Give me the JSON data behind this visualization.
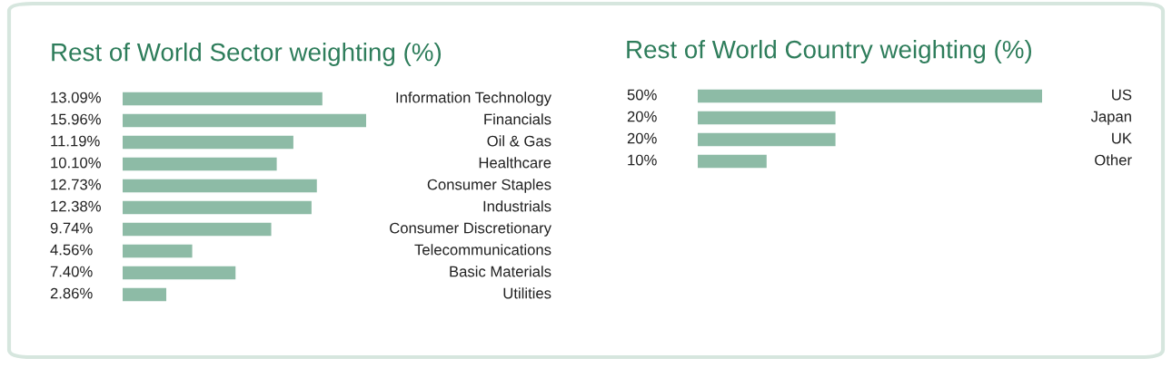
{
  "chart_data": [
    {
      "type": "bar",
      "orientation": "horizontal",
      "title": "Rest of World Sector weighting (%)",
      "categories": [
        "Information Technology",
        "Financials",
        "Oil & Gas",
        "Healthcare",
        "Consumer Staples",
        "Industrials",
        "Consumer Discretionary",
        "Telecommunications",
        "Basic Materials",
        "Utilities"
      ],
      "values": [
        13.09,
        15.96,
        11.19,
        10.1,
        12.73,
        12.38,
        9.74,
        4.56,
        7.4,
        2.86
      ],
      "value_labels": [
        "13.09%",
        "15.96%",
        "11.19%",
        "10.10%",
        "12.73%",
        "12.38%",
        "9.74%",
        "4.56%",
        "7.40%",
        "2.86%"
      ],
      "color": "#8dbba6"
    },
    {
      "type": "bar",
      "orientation": "horizontal",
      "title": "Rest of World Country weighting (%)",
      "categories": [
        "US",
        "Japan",
        "UK",
        "Other"
      ],
      "values": [
        50,
        20,
        20,
        10
      ],
      "value_labels": [
        "50%",
        "20%",
        "20%",
        "10%"
      ],
      "color": "#8dbba6"
    }
  ]
}
